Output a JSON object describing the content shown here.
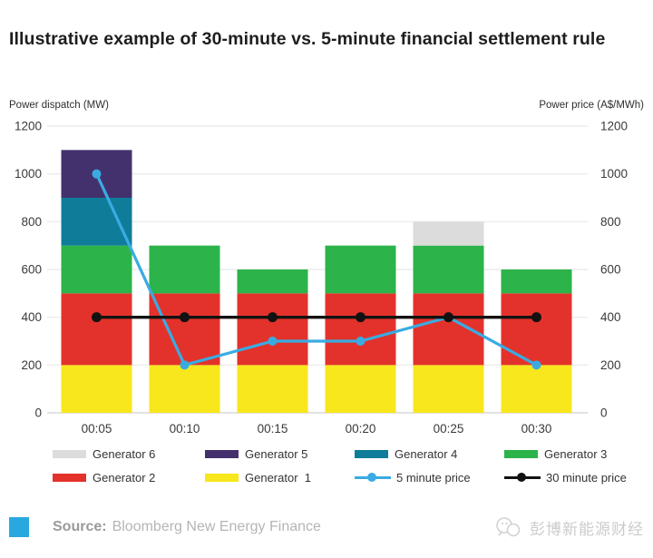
{
  "title": "Illustrative example of 30-minute vs. 5-minute financial settlement rule",
  "axes": {
    "left_label": "Power dispatch (MW)",
    "right_label": "Power price (A$/MWh)"
  },
  "chart_data": {
    "type": "bar",
    "subtype": "stacked-bar-with-lines",
    "title": "Illustrative example of 30-minute vs. 5-minute financial settlement rule",
    "categories": [
      "00:05",
      "00:10",
      "00:15",
      "00:20",
      "00:25",
      "00:30"
    ],
    "xlabel": "",
    "ylabel_left": "Power dispatch (MW)",
    "ylabel_right": "Power price (A$/MWh)",
    "ylim": [
      0,
      1200
    ],
    "y_ticks": [
      0,
      200,
      400,
      600,
      800,
      1000,
      1200
    ],
    "grid": true,
    "legend_position": "bottom",
    "bar_series": [
      {
        "name": "Generator 1",
        "color": "#f8e71c",
        "values": [
          200,
          200,
          200,
          200,
          200,
          200
        ]
      },
      {
        "name": "Generator 2",
        "color": "#e3322b",
        "values": [
          300,
          300,
          300,
          300,
          300,
          300
        ]
      },
      {
        "name": "Generator 3",
        "color": "#2cb34a",
        "values": [
          200,
          200,
          100,
          200,
          200,
          100
        ]
      },
      {
        "name": "Generator 4",
        "color": "#0f7d99",
        "values": [
          200,
          0,
          0,
          0,
          0,
          0
        ]
      },
      {
        "name": "Generator 5",
        "color": "#43316e",
        "values": [
          200,
          0,
          0,
          0,
          0,
          0
        ]
      },
      {
        "name": "Generator 6",
        "color": "#dcdcdc",
        "values": [
          0,
          0,
          0,
          0,
          100,
          0
        ]
      }
    ],
    "line_series": [
      {
        "name": "5 minute price",
        "color": "#3aabe2",
        "values": [
          1000,
          200,
          300,
          300,
          400,
          200
        ]
      },
      {
        "name": "30 minute price",
        "color": "#121212",
        "values": [
          400,
          400,
          400,
          400,
          400,
          400
        ]
      }
    ]
  },
  "legend": [
    {
      "label": "Generator 6",
      "color": "#dcdcdc",
      "type": "box"
    },
    {
      "label": "Generator 5",
      "color": "#43316e",
      "type": "box"
    },
    {
      "label": "Generator 4",
      "color": "#0f7d99",
      "type": "box"
    },
    {
      "label": "Generator 3",
      "color": "#2cb34a",
      "type": "box"
    },
    {
      "label": "Generator 2",
      "color": "#e3322b",
      "type": "box"
    },
    {
      "label": "Generator  1",
      "color": "#f8e71c",
      "type": "box"
    },
    {
      "label": "5 minute price",
      "color": "#3aabe2",
      "type": "line"
    },
    {
      "label": "30 minute price",
      "color": "#121212",
      "type": "line"
    }
  ],
  "footer": {
    "accent_color": "#29a8e0",
    "source_prefix": "Source:",
    "source_text": "Bloomberg New Energy Finance",
    "watermark_text": "彭博新能源财经"
  },
  "style": {
    "grid_color": "#ececec",
    "axis_line_color": "#d9d9d9",
    "tick_color": "#3a3a3a"
  }
}
